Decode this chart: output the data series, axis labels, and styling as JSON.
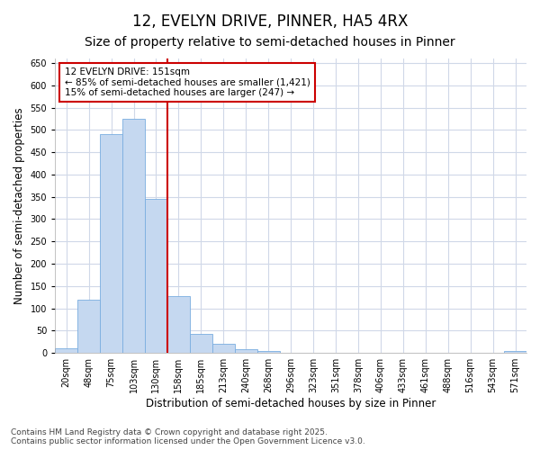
{
  "title": "12, EVELYN DRIVE, PINNER, HA5 4RX",
  "subtitle": "Size of property relative to semi-detached houses in Pinner",
  "xlabel": "Distribution of semi-detached houses by size in Pinner",
  "ylabel": "Number of semi-detached properties",
  "categories": [
    "20sqm",
    "48sqm",
    "75sqm",
    "103sqm",
    "130sqm",
    "158sqm",
    "185sqm",
    "213sqm",
    "240sqm",
    "268sqm",
    "296sqm",
    "323sqm",
    "351sqm",
    "378sqm",
    "406sqm",
    "433sqm",
    "461sqm",
    "488sqm",
    "516sqm",
    "543sqm",
    "571sqm"
  ],
  "values": [
    10,
    119,
    490,
    524,
    345,
    127,
    42,
    20,
    8,
    5,
    0,
    0,
    0,
    0,
    0,
    0,
    0,
    0,
    0,
    0,
    5
  ],
  "bar_color": "#c5d8f0",
  "bar_edge_color": "#7aade0",
  "vline_index": 5,
  "vline_color": "#cc0000",
  "annotation_title": "12 EVELYN DRIVE: 151sqm",
  "annotation_line1": "← 85% of semi-detached houses are smaller (1,421)",
  "annotation_line2": "15% of semi-detached houses are larger (247) →",
  "annotation_box_color": "#cc0000",
  "ylim": [
    0,
    660
  ],
  "yticks": [
    0,
    50,
    100,
    150,
    200,
    250,
    300,
    350,
    400,
    450,
    500,
    550,
    600,
    650
  ],
  "footnote1": "Contains HM Land Registry data © Crown copyright and database right 2025.",
  "footnote2": "Contains public sector information licensed under the Open Government Licence v3.0.",
  "bg_color": "#ffffff",
  "grid_color": "#d0d8e8",
  "title_fontsize": 12,
  "subtitle_fontsize": 10,
  "tick_fontsize": 7,
  "ylabel_fontsize": 8.5,
  "xlabel_fontsize": 8.5,
  "footnote_fontsize": 6.5
}
